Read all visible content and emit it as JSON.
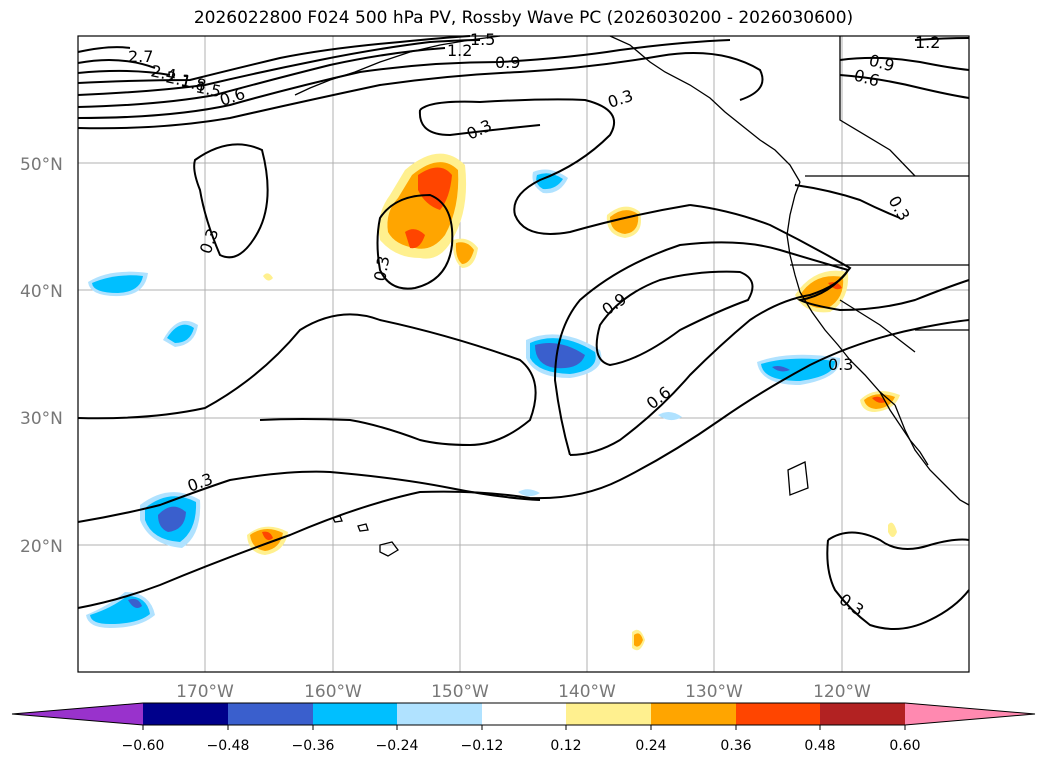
{
  "title": "2026022800 F024 500 hPa PV, Rossby Wave PC (2026030200 - 2026030600)",
  "map": {
    "lon_labels": [
      "170°W",
      "160°W",
      "150°W",
      "140°W",
      "130°W",
      "120°W"
    ],
    "lat_labels": [
      "50°N",
      "40°N",
      "30°N",
      "20°N"
    ],
    "contour_labels": [
      "2.7",
      "2.4",
      "2.1",
      "1.8",
      "1.5",
      "1.2",
      "0.9",
      "0.6",
      "0.3"
    ]
  },
  "colorbar": {
    "ticks": [
      "−0.60",
      "−0.48",
      "−0.36",
      "−0.24",
      "−0.12",
      "0.12",
      "0.24",
      "0.36",
      "0.48",
      "0.60"
    ],
    "colors": [
      "#9932cc",
      "#00008b",
      "#3a5fcd",
      "#00bfff",
      "#b0e2ff",
      "#ffffff",
      "#fff08f",
      "#ffa500",
      "#ff4500",
      "#b22222",
      "#ff89b0"
    ]
  }
}
